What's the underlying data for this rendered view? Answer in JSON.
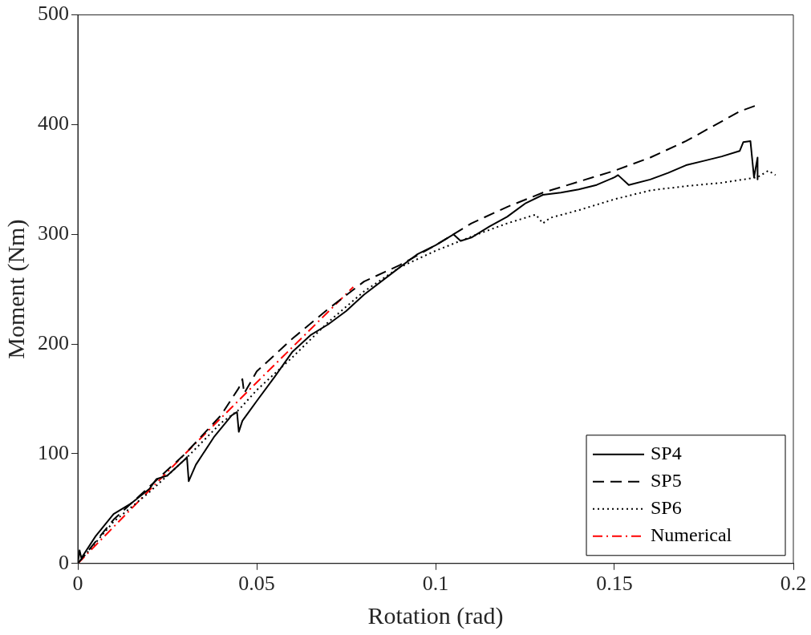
{
  "chart_data": {
    "type": "line",
    "xlabel": "Rotation (rad)",
    "ylabel": "Moment (Nm)",
    "xlim": [
      0,
      0.2
    ],
    "xticks": [
      0,
      0.05,
      0.1,
      0.15,
      0.2
    ],
    "ylim": [
      0,
      500
    ],
    "yticks": [
      0,
      100,
      200,
      300,
      400,
      500
    ],
    "grid": false,
    "legend": "bottom right",
    "marker": "none",
    "series": [
      {
        "name": "SP4",
        "color": "#000000",
        "line_style": "solid",
        "x": [
          0,
          0.0005,
          0.001,
          0.005,
          0.01,
          0.015,
          0.02,
          0.022,
          0.025,
          0.03,
          0.0305,
          0.031,
          0.033,
          0.038,
          0.043,
          0.0445,
          0.045,
          0.046,
          0.05,
          0.055,
          0.06,
          0.065,
          0.07,
          0.075,
          0.08,
          0.09,
          0.095,
          0.1,
          0.105,
          0.107,
          0.11,
          0.115,
          0.12,
          0.125,
          0.13,
          0.135,
          0.14,
          0.145,
          0.15,
          0.151,
          0.154,
          0.16,
          0.165,
          0.17,
          0.175,
          0.18,
          0.185,
          0.186,
          0.188,
          0.189,
          0.19,
          0.19
        ],
        "values": [
          0,
          12,
          5,
          25,
          45,
          55,
          68,
          77,
          80,
          95,
          97,
          75,
          90,
          115,
          135,
          138,
          120,
          130,
          148,
          170,
          193,
          208,
          218,
          230,
          245,
          270,
          282,
          290,
          300,
          294,
          297,
          307,
          316,
          328,
          336,
          338,
          341,
          345,
          352,
          354,
          345,
          350,
          356,
          363,
          367,
          371,
          376,
          384,
          385,
          352,
          370,
          350
        ]
      },
      {
        "name": "SP5",
        "color": "#000000",
        "line_style": "dashed",
        "x": [
          0,
          0.01,
          0.02,
          0.03,
          0.04,
          0.045,
          0.046,
          0.0465,
          0.05,
          0.06,
          0.07,
          0.08,
          0.09,
          0.1,
          0.11,
          0.12,
          0.13,
          0.14,
          0.15,
          0.16,
          0.17,
          0.18,
          0.185,
          0.19,
          0.19
        ],
        "values": [
          0,
          40,
          70,
          100,
          135,
          160,
          168,
          155,
          175,
          205,
          232,
          257,
          272,
          290,
          310,
          325,
          338,
          348,
          358,
          370,
          385,
          403,
          412,
          418,
          415
        ]
      },
      {
        "name": "SP6",
        "color": "#000000",
        "line_style": "dotted",
        "x": [
          0,
          0.01,
          0.02,
          0.03,
          0.04,
          0.045,
          0.05,
          0.06,
          0.07,
          0.08,
          0.09,
          0.1,
          0.11,
          0.12,
          0.128,
          0.13,
          0.132,
          0.14,
          0.15,
          0.16,
          0.17,
          0.18,
          0.19,
          0.193,
          0.195
        ],
        "values": [
          0,
          38,
          65,
          95,
          128,
          140,
          158,
          188,
          220,
          248,
          270,
          285,
          298,
          310,
          318,
          310,
          315,
          322,
          332,
          340,
          344,
          347,
          352,
          358,
          354
        ]
      },
      {
        "name": "Numerical",
        "color": "#ff0000",
        "line_style": "dashdot",
        "x": [
          0,
          0.03,
          0.05,
          0.077
        ],
        "values": [
          0,
          100,
          165,
          252
        ]
      }
    ]
  }
}
